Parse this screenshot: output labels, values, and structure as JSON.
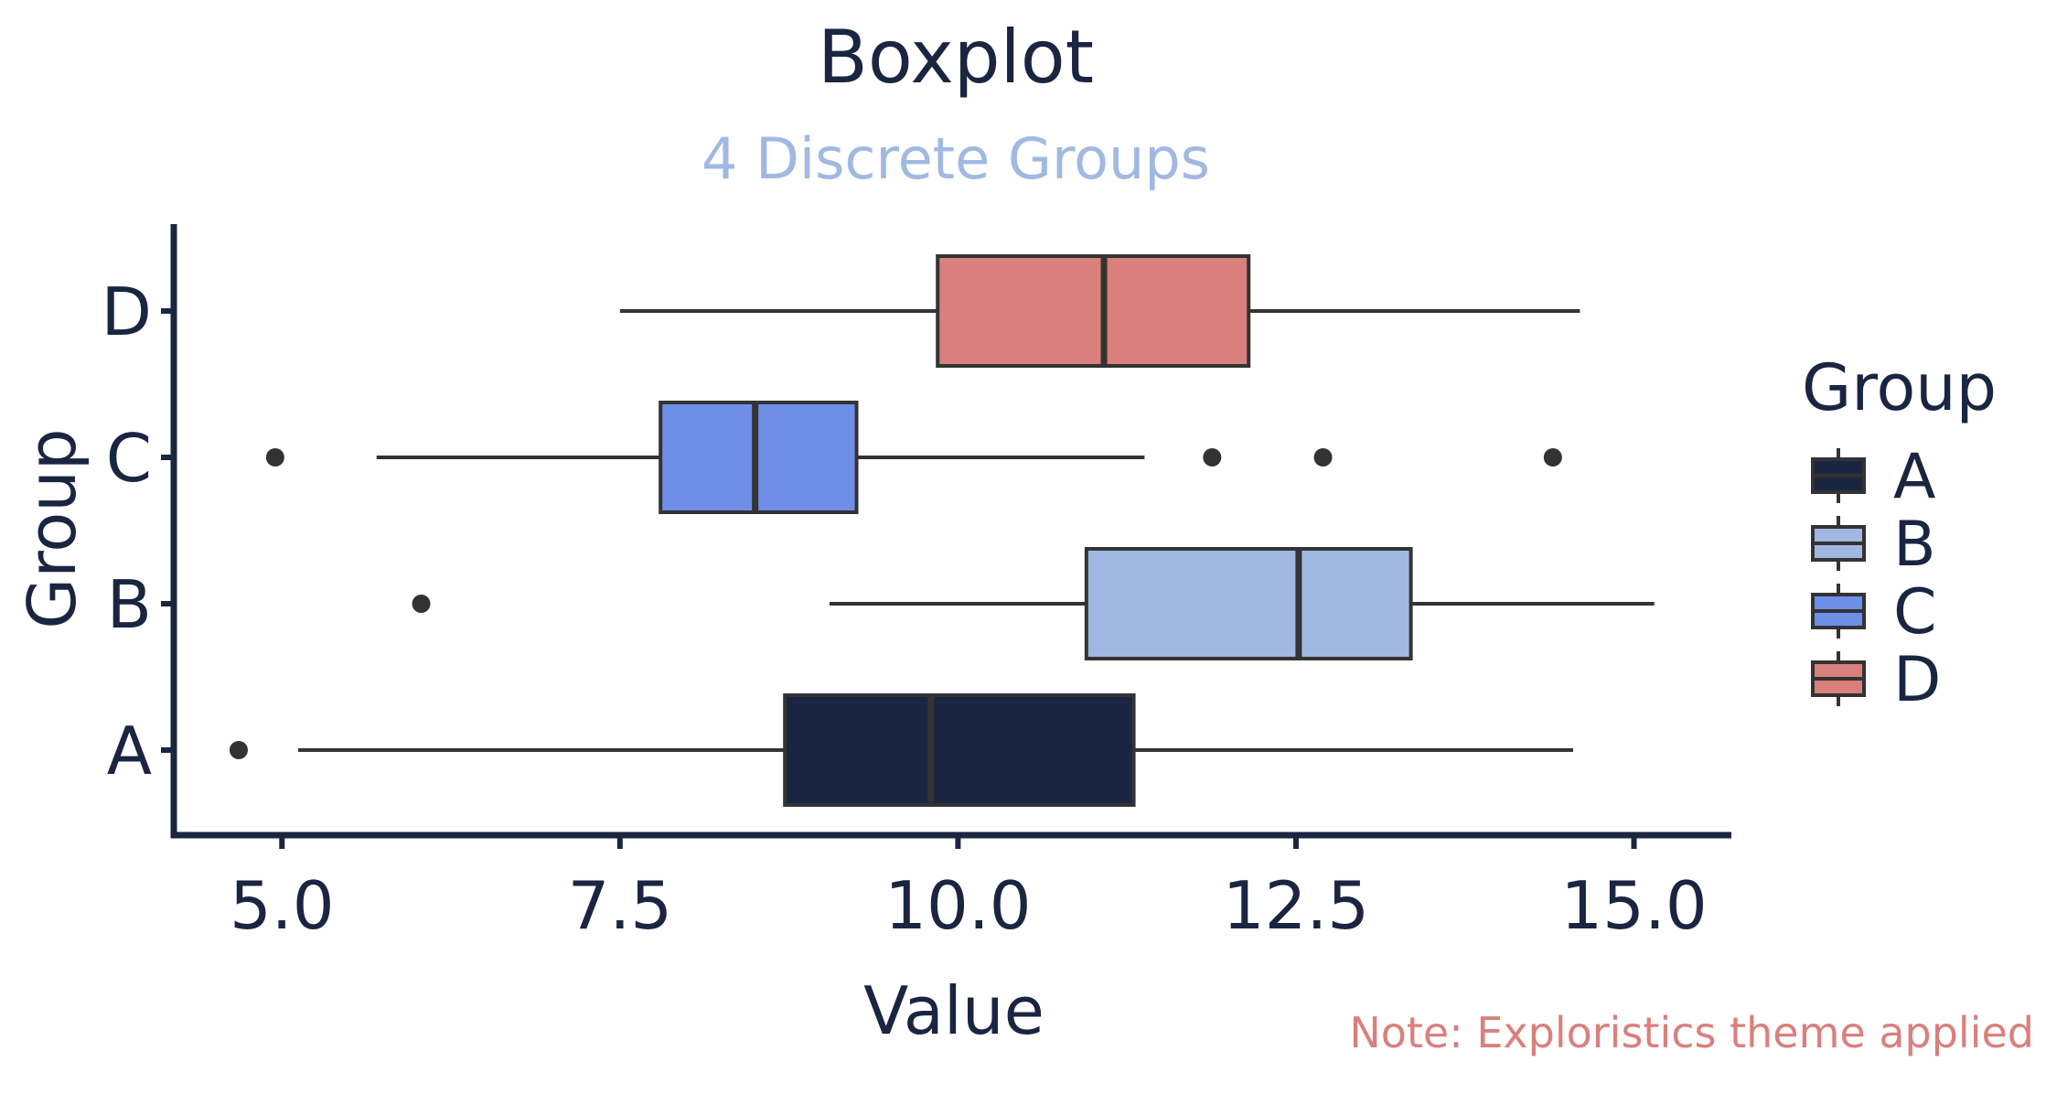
{
  "chart_data": {
    "type": "boxplot",
    "title": "Boxplot",
    "subtitle": "4 Discrete Groups",
    "xlabel": "Value",
    "ylabel": "Group",
    "caption": "Note: Exploristics theme applied",
    "xlim": [
      4.2,
      15.7
    ],
    "x_ticks": [
      5.0,
      7.5,
      10.0,
      12.5,
      15.0
    ],
    "x_tick_labels": [
      "5.0",
      "7.5",
      "10.0",
      "12.5",
      "15.0"
    ],
    "grid": false,
    "legend": {
      "title": "Group",
      "position": "right"
    },
    "groups": [
      {
        "name": "A",
        "color": "#1a2541",
        "whisker_low": 5.12,
        "q1": 8.72,
        "median": 9.8,
        "q3": 11.3,
        "whisker_high": 14.55,
        "outliers": [
          4.68
        ]
      },
      {
        "name": "B",
        "color": "#a1b9e2",
        "whisker_low": 9.05,
        "q1": 10.95,
        "median": 12.52,
        "q3": 13.35,
        "whisker_high": 15.15,
        "outliers": [
          6.03
        ]
      },
      {
        "name": "C",
        "color": "#6e8ee8",
        "whisker_low": 5.7,
        "q1": 7.8,
        "median": 8.5,
        "q3": 9.25,
        "whisker_high": 11.38,
        "outliers": [
          4.95,
          11.88,
          12.7,
          14.4
        ]
      },
      {
        "name": "D",
        "color": "#d9807d",
        "whisker_low": 7.5,
        "q1": 9.85,
        "median": 11.08,
        "q3": 12.15,
        "whisker_high": 14.6,
        "outliers": []
      }
    ]
  }
}
